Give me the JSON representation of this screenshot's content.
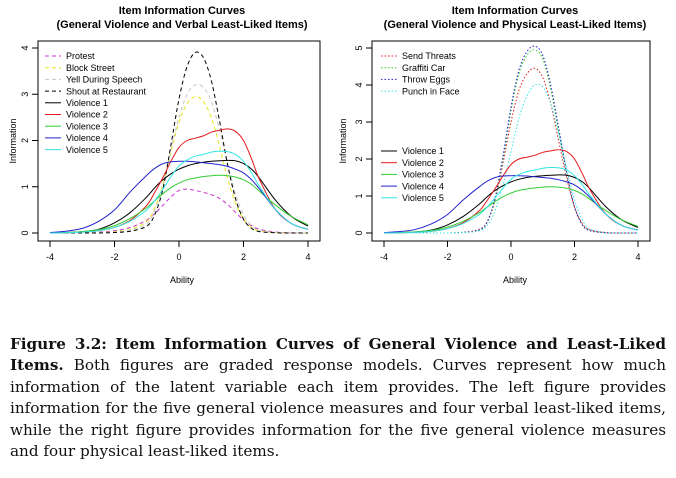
{
  "caption": {
    "label": "Figure 3.2:",
    "title": "Item Information Curves of General Violence and Least-Liked Items.",
    "body": "Both figures are graded response models. Curves represent how much information of the latent variable each item provides. The left figure provides information for the five general violence measures and four verbal least-liked items, while the right figure provides information for the five general violence measures and four physical least-liked items."
  },
  "chart_data": [
    {
      "type": "line",
      "title": "Item Information Curves",
      "subtitle": "(General Violence and Verbal Least-Liked Items)",
      "xlabel": "Ability",
      "ylabel": "Information",
      "xlim": [
        -4,
        4
      ],
      "ylim": [
        0,
        4
      ],
      "xticks": [
        -4,
        -2,
        0,
        2,
        4
      ],
      "yticks": [
        0,
        1,
        2,
        3,
        4
      ],
      "legend_position": "top-left",
      "x": [
        -4,
        -3.5,
        -3,
        -2.5,
        -2,
        -1.5,
        -1,
        -0.75,
        -0.5,
        -0.25,
        0,
        0.25,
        0.5,
        0.75,
        1,
        1.25,
        1.5,
        1.75,
        2,
        2.25,
        2.5,
        3,
        3.5,
        4
      ],
      "series": [
        {
          "name": "Protest",
          "color": "#cc33cc",
          "dash": "4,3",
          "values": [
            0,
            0,
            0.01,
            0.02,
            0.05,
            0.12,
            0.28,
            0.42,
            0.6,
            0.78,
            0.92,
            0.95,
            0.92,
            0.88,
            0.83,
            0.75,
            0.62,
            0.45,
            0.28,
            0.16,
            0.08,
            0.02,
            0.005,
            0
          ]
        },
        {
          "name": "Block Street",
          "color": "#e6e61a",
          "dash": "4,3",
          "values": [
            0,
            0,
            0,
            0.01,
            0.03,
            0.08,
            0.25,
            0.55,
            1.05,
            1.75,
            2.4,
            2.8,
            2.95,
            2.85,
            2.5,
            1.9,
            1.2,
            0.65,
            0.3,
            0.12,
            0.05,
            0.01,
            0,
            0
          ]
        },
        {
          "name": "Yell During Speech",
          "color": "#c8c8c8",
          "dash": "4,3",
          "values": [
            0,
            0,
            0,
            0.01,
            0.02,
            0.06,
            0.2,
            0.5,
            1.0,
            1.8,
            2.5,
            3.0,
            3.2,
            3.15,
            2.85,
            2.25,
            1.5,
            0.85,
            0.4,
            0.16,
            0.06,
            0.01,
            0,
            0
          ]
        },
        {
          "name": "Shout at Restaurant",
          "color": "#000000",
          "dash": "4,3",
          "values": [
            0,
            0,
            0,
            0,
            0.01,
            0.04,
            0.15,
            0.4,
            0.95,
            1.9,
            2.9,
            3.6,
            3.9,
            3.8,
            3.3,
            2.45,
            1.5,
            0.75,
            0.3,
            0.1,
            0.03,
            0.005,
            0,
            0
          ]
        },
        {
          "name": "Violence 1",
          "color": "#000000",
          "dash": "",
          "values": [
            0,
            0.01,
            0.03,
            0.08,
            0.22,
            0.45,
            0.78,
            0.98,
            1.15,
            1.28,
            1.38,
            1.45,
            1.5,
            1.53,
            1.55,
            1.56,
            1.57,
            1.56,
            1.5,
            1.38,
            1.18,
            0.7,
            0.35,
            0.15
          ]
        },
        {
          "name": "Violence 2",
          "color": "#e41a1c",
          "dash": "",
          "values": [
            0,
            0.005,
            0.02,
            0.05,
            0.12,
            0.28,
            0.6,
            0.88,
            1.2,
            1.55,
            1.85,
            2.0,
            2.05,
            2.1,
            2.18,
            2.22,
            2.25,
            2.2,
            2.0,
            1.6,
            1.15,
            0.5,
            0.2,
            0.08
          ]
        },
        {
          "name": "Violence 3",
          "color": "#33cc33",
          "dash": "",
          "values": [
            0,
            0.01,
            0.03,
            0.07,
            0.16,
            0.32,
            0.55,
            0.7,
            0.85,
            0.98,
            1.08,
            1.15,
            1.19,
            1.22,
            1.24,
            1.25,
            1.24,
            1.21,
            1.15,
            1.05,
            0.9,
            0.6,
            0.35,
            0.18
          ]
        },
        {
          "name": "Violence 4",
          "color": "#2222cc",
          "dash": "",
          "values": [
            0.01,
            0.04,
            0.1,
            0.25,
            0.5,
            0.9,
            1.25,
            1.4,
            1.5,
            1.54,
            1.55,
            1.55,
            1.54,
            1.52,
            1.5,
            1.48,
            1.44,
            1.38,
            1.3,
            1.15,
            0.95,
            0.5,
            0.2,
            0.08
          ]
        },
        {
          "name": "Violence 5",
          "color": "#33e6e6",
          "dash": "",
          "values": [
            0,
            0.005,
            0.02,
            0.05,
            0.12,
            0.26,
            0.5,
            0.7,
            0.95,
            1.22,
            1.45,
            1.58,
            1.66,
            1.7,
            1.75,
            1.77,
            1.76,
            1.7,
            1.55,
            1.3,
            1.0,
            0.5,
            0.2,
            0.08
          ]
        }
      ]
    },
    {
      "type": "line",
      "title": "Item Information Curves",
      "subtitle": "(General Violence and Physical Least-Liked Items)",
      "xlabel": "Ability",
      "ylabel": "Information",
      "xlim": [
        -4,
        4
      ],
      "ylim": [
        0,
        5
      ],
      "xticks": [
        -4,
        -2,
        0,
        2,
        4
      ],
      "yticks": [
        0,
        1,
        2,
        3,
        4,
        5
      ],
      "legend_position": "top-left",
      "x": [
        -4,
        -3.5,
        -3,
        -2.5,
        -2,
        -1.5,
        -1,
        -0.75,
        -0.5,
        -0.25,
        0,
        0.25,
        0.5,
        0.75,
        1,
        1.25,
        1.5,
        1.75,
        2,
        2.25,
        2.5,
        3,
        3.5,
        4
      ],
      "series": [
        {
          "name": "Send Threats",
          "color": "#e41a1c",
          "dash": "1.5,2",
          "values": [
            0,
            0,
            0,
            0,
            0,
            0.02,
            0.1,
            0.3,
            0.9,
            1.9,
            3.0,
            3.85,
            4.3,
            4.45,
            4.2,
            3.5,
            2.5,
            1.5,
            0.7,
            0.25,
            0.08,
            0.01,
            0,
            0
          ]
        },
        {
          "name": "Graffiti Car",
          "color": "#33cc33",
          "dash": "1.5,2",
          "values": [
            0,
            0,
            0,
            0,
            0,
            0.02,
            0.08,
            0.3,
            0.9,
            2.0,
            3.3,
            4.3,
            4.8,
            4.95,
            4.7,
            3.9,
            2.75,
            1.6,
            0.7,
            0.22,
            0.06,
            0.005,
            0,
            0
          ]
        },
        {
          "name": "Throw Eggs",
          "color": "#2222cc",
          "dash": "1.5,2",
          "values": [
            0,
            0,
            0,
            0,
            0,
            0.02,
            0.08,
            0.3,
            0.95,
            2.1,
            3.4,
            4.4,
            4.9,
            5.05,
            4.8,
            4.0,
            2.85,
            1.65,
            0.72,
            0.22,
            0.06,
            0.005,
            0,
            0
          ]
        },
        {
          "name": "Punch in Face",
          "color": "#33e6e6",
          "dash": "1.5,2",
          "values": [
            0,
            0,
            0,
            0,
            0,
            0.01,
            0.06,
            0.2,
            0.6,
            1.3,
            2.2,
            3.1,
            3.7,
            4.0,
            3.95,
            3.5,
            2.7,
            1.75,
            0.9,
            0.35,
            0.1,
            0.01,
            0,
            0
          ]
        },
        {
          "name": "Violence 1",
          "color": "#000000",
          "dash": "",
          "values": [
            0,
            0.01,
            0.03,
            0.08,
            0.22,
            0.45,
            0.78,
            0.98,
            1.15,
            1.28,
            1.38,
            1.45,
            1.5,
            1.53,
            1.55,
            1.56,
            1.57,
            1.56,
            1.5,
            1.38,
            1.18,
            0.7,
            0.35,
            0.15
          ]
        },
        {
          "name": "Violence 2",
          "color": "#e41a1c",
          "dash": "",
          "values": [
            0,
            0.005,
            0.02,
            0.05,
            0.12,
            0.28,
            0.6,
            0.88,
            1.2,
            1.55,
            1.85,
            2.0,
            2.05,
            2.1,
            2.18,
            2.22,
            2.25,
            2.2,
            2.0,
            1.6,
            1.15,
            0.5,
            0.2,
            0.08
          ]
        },
        {
          "name": "Violence 3",
          "color": "#33cc33",
          "dash": "",
          "values": [
            0,
            0.01,
            0.03,
            0.07,
            0.16,
            0.32,
            0.55,
            0.7,
            0.85,
            0.98,
            1.08,
            1.15,
            1.19,
            1.22,
            1.24,
            1.25,
            1.24,
            1.21,
            1.15,
            1.05,
            0.9,
            0.6,
            0.35,
            0.18
          ]
        },
        {
          "name": "Violence 4",
          "color": "#2222cc",
          "dash": "",
          "values": [
            0.01,
            0.04,
            0.1,
            0.25,
            0.5,
            0.9,
            1.25,
            1.4,
            1.5,
            1.54,
            1.55,
            1.55,
            1.54,
            1.52,
            1.5,
            1.48,
            1.44,
            1.38,
            1.3,
            1.15,
            0.95,
            0.5,
            0.2,
            0.08
          ]
        },
        {
          "name": "Violence 5",
          "color": "#33e6e6",
          "dash": "",
          "values": [
            0,
            0.005,
            0.02,
            0.05,
            0.12,
            0.26,
            0.5,
            0.7,
            0.95,
            1.22,
            1.45,
            1.58,
            1.66,
            1.7,
            1.75,
            1.77,
            1.76,
            1.7,
            1.55,
            1.3,
            1.0,
            0.5,
            0.2,
            0.08
          ]
        }
      ]
    }
  ]
}
